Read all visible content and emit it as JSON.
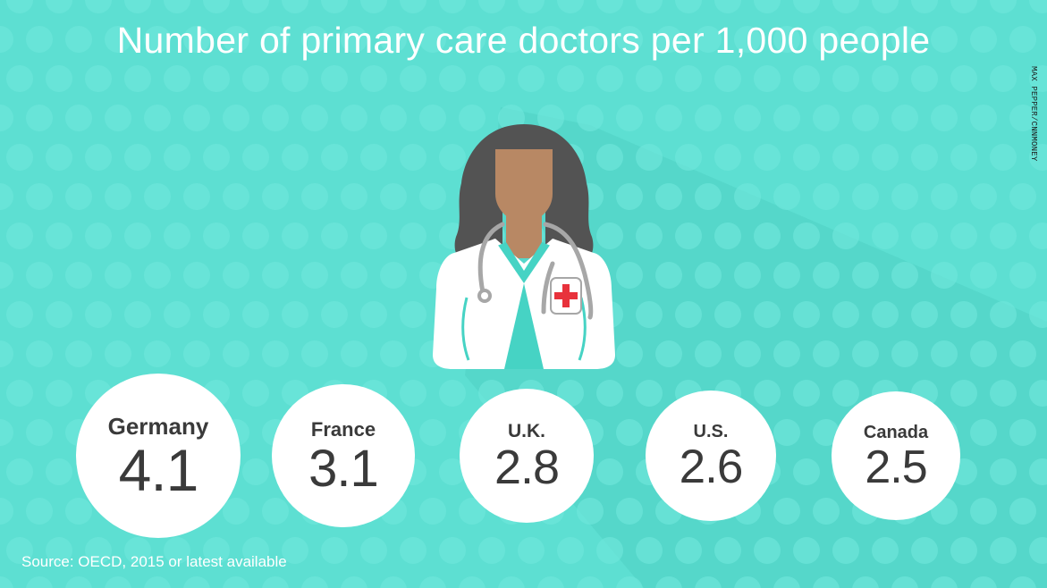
{
  "title": "Number of primary care doctors per 1,000 people",
  "credit": "MAX PEPPER/CNNMONEY",
  "source": "Source: OECD, 2015 or latest available",
  "colors": {
    "background": "#5ddfd2",
    "dots": "#6ee6da",
    "shadow": "#4fcfc3",
    "circle": "#ffffff",
    "text_dark": "#3a3a3a",
    "cross": "#e8323c"
  },
  "icons": [
    "doctor-illustration-icon",
    "stethoscope-icon",
    "red-cross-icon"
  ],
  "chart_data": {
    "type": "table",
    "title": "Number of primary care doctors per 1,000 people",
    "categories": [
      "Germany",
      "France",
      "U.K.",
      "U.S.",
      "Canada"
    ],
    "values": [
      4.1,
      3.1,
      2.8,
      2.6,
      2.5
    ],
    "labels": [
      "4.1",
      "3.1",
      "2.8",
      "2.6",
      "2.5"
    ],
    "unit": "doctors per 1,000 people"
  }
}
